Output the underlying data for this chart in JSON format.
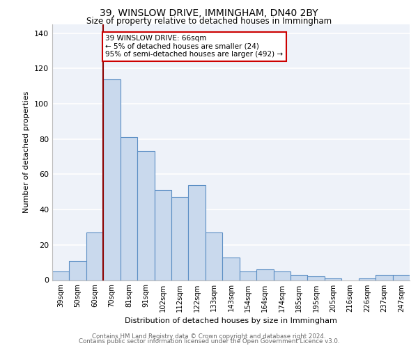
{
  "title1": "39, WINSLOW DRIVE, IMMINGHAM, DN40 2BY",
  "title2": "Size of property relative to detached houses in Immingham",
  "xlabel": "Distribution of detached houses by size in Immingham",
  "ylabel": "Number of detached properties",
  "categories": [
    "39sqm",
    "50sqm",
    "60sqm",
    "70sqm",
    "81sqm",
    "91sqm",
    "102sqm",
    "112sqm",
    "122sqm",
    "133sqm",
    "143sqm",
    "154sqm",
    "164sqm",
    "174sqm",
    "185sqm",
    "195sqm",
    "205sqm",
    "216sqm",
    "226sqm",
    "237sqm",
    "247sqm"
  ],
  "values": [
    5,
    11,
    27,
    114,
    81,
    73,
    51,
    47,
    54,
    27,
    13,
    5,
    6,
    5,
    3,
    2,
    1,
    0,
    1,
    3,
    3
  ],
  "bar_color": "#c9d9ed",
  "bar_edge_color": "#5b8ec4",
  "annotation_line1": "39 WINSLOW DRIVE: 66sqm",
  "annotation_line2": "← 5% of detached houses are smaller (24)",
  "annotation_line3": "95% of semi-detached houses are larger (492) →",
  "vline_x": 2.5,
  "vline_color": "#8b0000",
  "ylim": [
    0,
    145
  ],
  "yticks": [
    0,
    20,
    40,
    60,
    80,
    100,
    120,
    140
  ],
  "background_color": "#eef2f9",
  "grid_color": "#ffffff",
  "footer1": "Contains HM Land Registry data © Crown copyright and database right 2024.",
  "footer2": "Contains public sector information licensed under the Open Government Licence v3.0."
}
